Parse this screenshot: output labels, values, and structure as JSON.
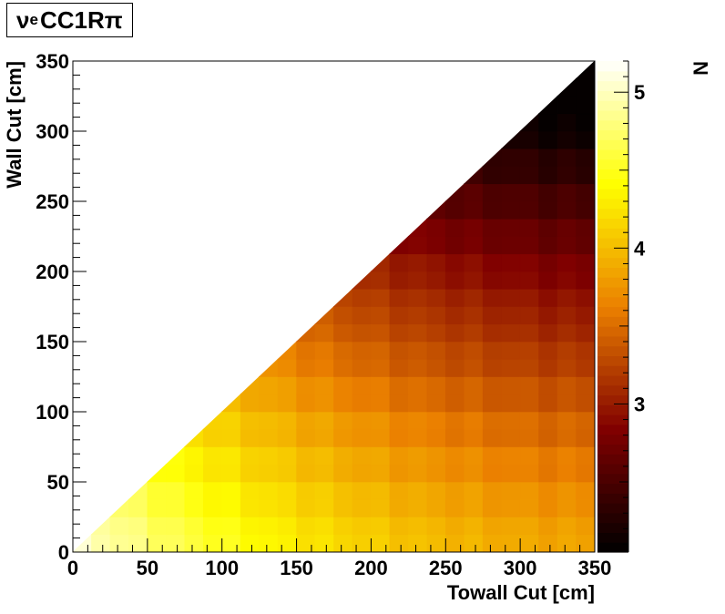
{
  "title": {
    "nu": "ν",
    "sub": "e",
    "main": " CC1Rπ"
  },
  "chart_data": {
    "type": "heatmap",
    "xlabel": "Towall Cut [cm]",
    "ylabel": "Wall Cut [cm]",
    "zlabel": "N",
    "xlim": [
      0,
      350
    ],
    "ylim": [
      0,
      350
    ],
    "zlim": [
      2.05,
      5.2
    ],
    "x_ticks": [
      0,
      50,
      100,
      150,
      200,
      250,
      300,
      350
    ],
    "y_ticks": [
      0,
      50,
      100,
      150,
      200,
      250,
      300,
      350
    ],
    "z_ticks": [
      3,
      4,
      5
    ],
    "z_tick_labels": [
      "3",
      "4",
      "5"
    ],
    "bin_width_cm": 12.5,
    "filled_region": "bins with wall cut <= towall cut (upper-left triangle empty)",
    "palette": "ROOT dark body radiator",
    "z_anchor_estimates": [
      {
        "towall": 0,
        "wall": 0,
        "n": 5.1
      },
      {
        "towall": 100,
        "wall": 0,
        "n": 4.85
      },
      {
        "towall": 150,
        "wall": 0,
        "n": 4.6
      },
      {
        "towall": 200,
        "wall": 0,
        "n": 4.3
      },
      {
        "towall": 300,
        "wall": 0,
        "n": 4.0
      },
      {
        "towall": 100,
        "wall": 100,
        "n": 4.4
      },
      {
        "towall": 150,
        "wall": 150,
        "n": 3.75
      },
      {
        "towall": 200,
        "wall": 200,
        "n": 3.3
      },
      {
        "towall": 250,
        "wall": 250,
        "n": 2.95
      },
      {
        "towall": 300,
        "wall": 300,
        "n": 2.6
      },
      {
        "towall": 337.5,
        "wall": 337.5,
        "n": 2.25
      }
    ]
  }
}
